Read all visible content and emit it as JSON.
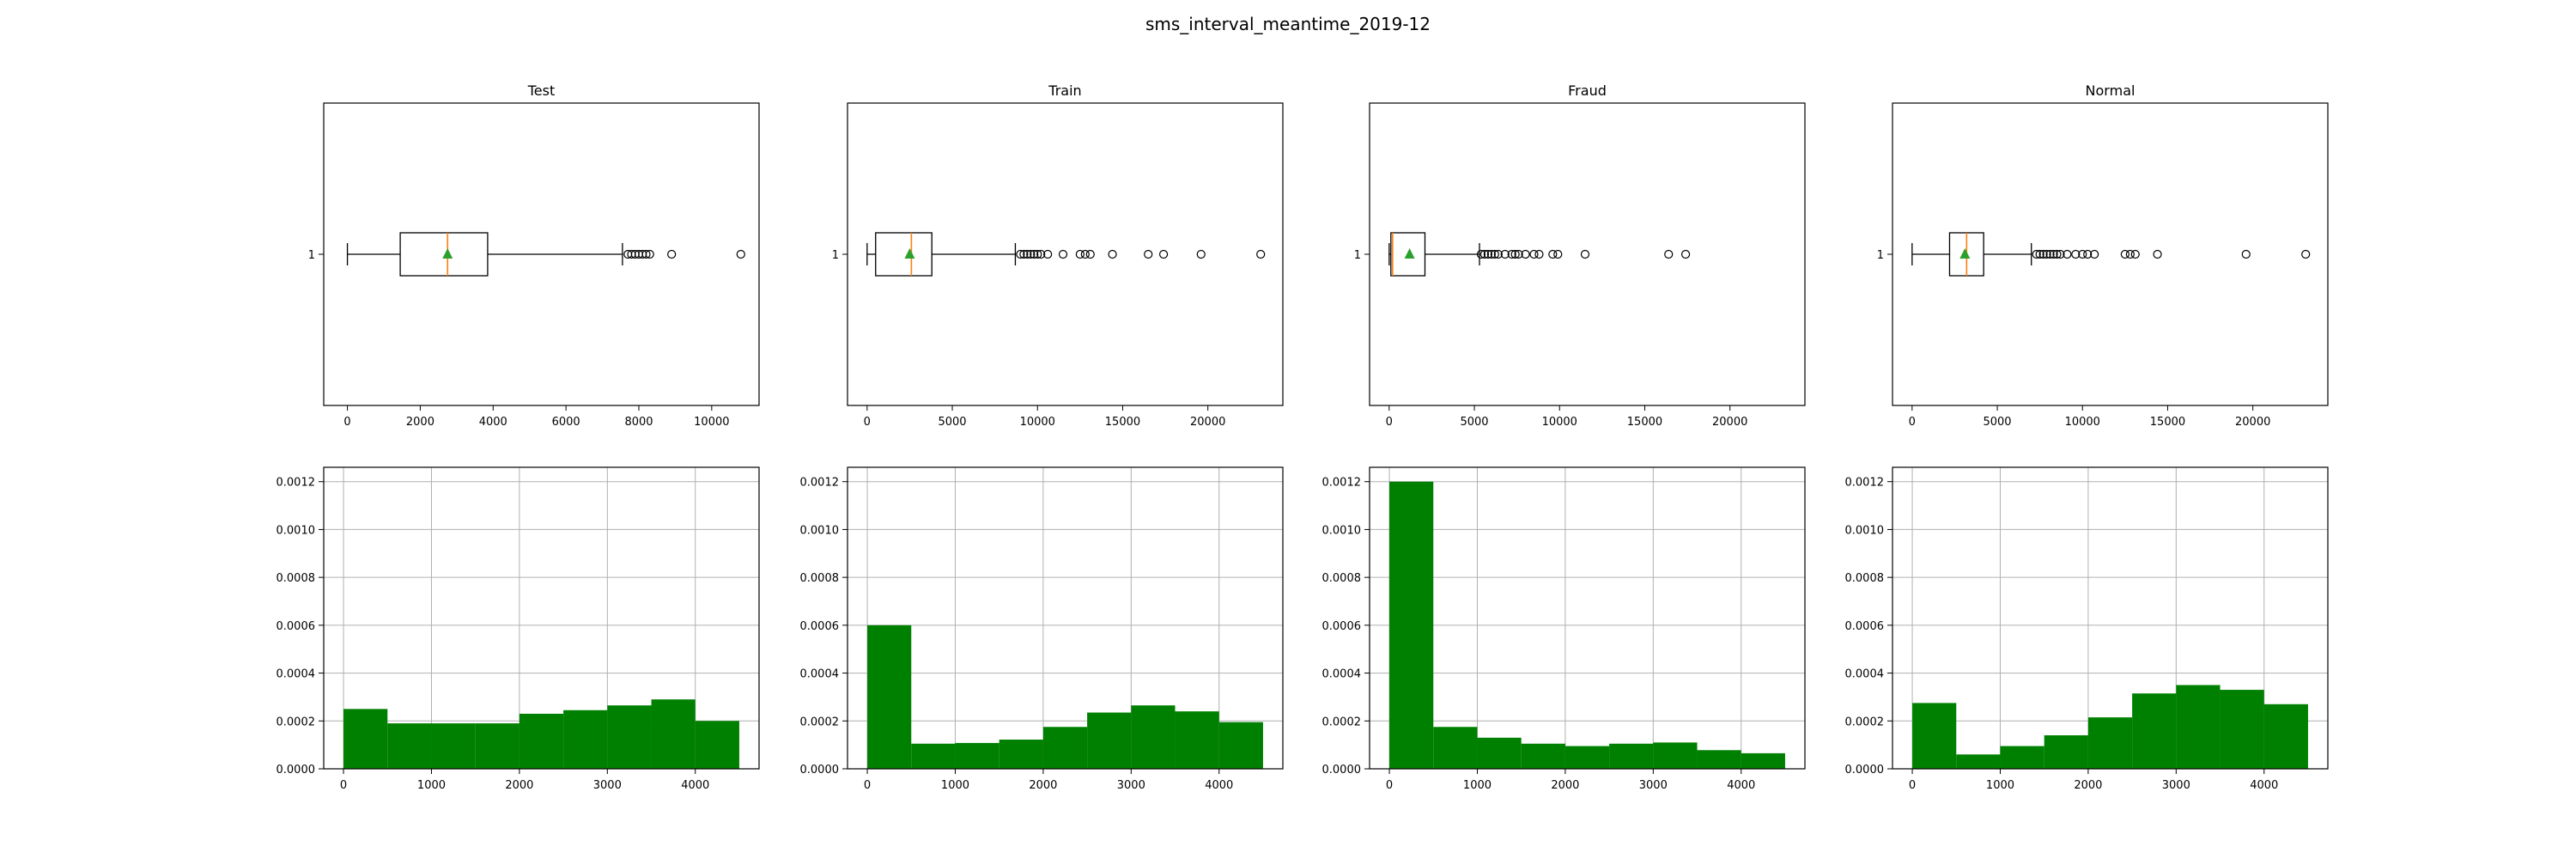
{
  "figure_title": "sms_interval_meantime_2019-12",
  "colors": {
    "hist_fill": "#008000",
    "median_line": "#ff7f0e",
    "mean_marker": "#2ca02c",
    "grid": "#b0b0b0",
    "axis": "#000000"
  },
  "chart_data": [
    {
      "type": "boxplot",
      "panel": "Test",
      "title": "Test",
      "orientation": "horizontal",
      "category_label": "1",
      "xlim": [
        -650,
        11300
      ],
      "xticks": [
        0,
        2000,
        4000,
        6000,
        8000,
        10000
      ],
      "whisker_low": 0,
      "q1": 1450,
      "median": 2750,
      "mean": 2750,
      "q3": 3850,
      "whisker_high": 7550,
      "fliers": [
        7700,
        7800,
        7900,
        8000,
        8100,
        8200,
        8300,
        8900,
        10800
      ]
    },
    {
      "type": "boxplot",
      "panel": "Train",
      "title": "Train",
      "orientation": "horizontal",
      "category_label": "1",
      "xlim": [
        -1150,
        24400
      ],
      "xticks": [
        0,
        5000,
        10000,
        15000,
        20000
      ],
      "whisker_low": 0,
      "q1": 500,
      "median": 2600,
      "mean": 2500,
      "q3": 3800,
      "whisker_high": 8700,
      "fliers": [
        9000,
        9200,
        9400,
        9600,
        9800,
        10000,
        10200,
        10600,
        11500,
        12500,
        12800,
        13100,
        14400,
        16500,
        17400,
        19600,
        23100
      ]
    },
    {
      "type": "boxplot",
      "panel": "Fraud",
      "title": "Fraud",
      "orientation": "horizontal",
      "category_label": "1",
      "xlim": [
        -1150,
        24400
      ],
      "xticks": [
        0,
        5000,
        10000,
        15000,
        20000
      ],
      "whisker_low": 0,
      "q1": 100,
      "median": 200,
      "mean": 1200,
      "q3": 2100,
      "whisker_high": 5300,
      "fliers": [
        5400,
        5600,
        5800,
        6000,
        6200,
        6400,
        6800,
        7200,
        7400,
        7600,
        8000,
        8500,
        8800,
        9600,
        9900,
        11500,
        16400,
        17400
      ]
    },
    {
      "type": "boxplot",
      "panel": "Normal",
      "title": "Normal",
      "orientation": "horizontal",
      "category_label": "1",
      "xlim": [
        -1150,
        24400
      ],
      "xticks": [
        0,
        5000,
        10000,
        15000,
        20000
      ],
      "whisker_low": 0,
      "q1": 2200,
      "median": 3200,
      "mean": 3100,
      "q3": 4200,
      "whisker_high": 7000,
      "fliers": [
        7300,
        7500,
        7700,
        7900,
        8100,
        8300,
        8500,
        8700,
        9100,
        9600,
        10000,
        10300,
        10700,
        12500,
        12800,
        13100,
        14400,
        19600,
        23100
      ]
    },
    {
      "type": "bar",
      "panel": "Test",
      "histogram": true,
      "bin_edges": [
        0,
        500,
        1000,
        1500,
        2000,
        2500,
        3000,
        3500,
        4000,
        4500
      ],
      "values": [
        0.00025,
        0.00019,
        0.00019,
        0.00019,
        0.00023,
        0.000245,
        0.000265,
        0.00029,
        0.0002
      ],
      "xlim": [
        -225,
        4725
      ],
      "xticks": [
        0,
        1000,
        2000,
        3000,
        4000
      ],
      "ylim": [
        0,
        0.00126
      ],
      "yticks": [
        "0.0000",
        "0.0002",
        "0.0004",
        "0.0006",
        "0.0008",
        "0.0010",
        "0.0012"
      ],
      "grid": true
    },
    {
      "type": "bar",
      "panel": "Train",
      "histogram": true,
      "bin_edges": [
        0,
        500,
        1000,
        1500,
        2000,
        2500,
        3000,
        3500,
        4000,
        4500
      ],
      "values": [
        0.0006,
        0.000105,
        0.000108,
        0.000122,
        0.000175,
        0.000235,
        0.000265,
        0.00024,
        0.000195
      ],
      "xlim": [
        -225,
        4725
      ],
      "xticks": [
        0,
        1000,
        2000,
        3000,
        4000
      ],
      "ylim": [
        0,
        0.00126
      ],
      "yticks": [
        "0.0000",
        "0.0002",
        "0.0004",
        "0.0006",
        "0.0008",
        "0.0010",
        "0.0012"
      ],
      "grid": true
    },
    {
      "type": "bar",
      "panel": "Fraud",
      "histogram": true,
      "bin_edges": [
        0,
        500,
        1000,
        1500,
        2000,
        2500,
        3000,
        3500,
        4000,
        4500
      ],
      "values": [
        0.0012,
        0.000175,
        0.00013,
        0.000105,
        9.5e-05,
        0.000105,
        0.00011,
        7.8e-05,
        6.5e-05
      ],
      "xlim": [
        -225,
        4725
      ],
      "xticks": [
        0,
        1000,
        2000,
        3000,
        4000
      ],
      "ylim": [
        0,
        0.00126
      ],
      "yticks": [
        "0.0000",
        "0.0002",
        "0.0004",
        "0.0006",
        "0.0008",
        "0.0010",
        "0.0012"
      ],
      "grid": true
    },
    {
      "type": "bar",
      "panel": "Normal",
      "histogram": true,
      "bin_edges": [
        0,
        500,
        1000,
        1500,
        2000,
        2500,
        3000,
        3500,
        4000,
        4500
      ],
      "values": [
        0.000275,
        6e-05,
        9.5e-05,
        0.00014,
        0.000215,
        0.000315,
        0.00035,
        0.00033,
        0.00027
      ],
      "xlim": [
        -225,
        4725
      ],
      "xticks": [
        0,
        1000,
        2000,
        3000,
        4000
      ],
      "ylim": [
        0,
        0.00126
      ],
      "yticks": [
        "0.0000",
        "0.0002",
        "0.0004",
        "0.0006",
        "0.0008",
        "0.0010",
        "0.0012"
      ],
      "grid": true
    }
  ]
}
